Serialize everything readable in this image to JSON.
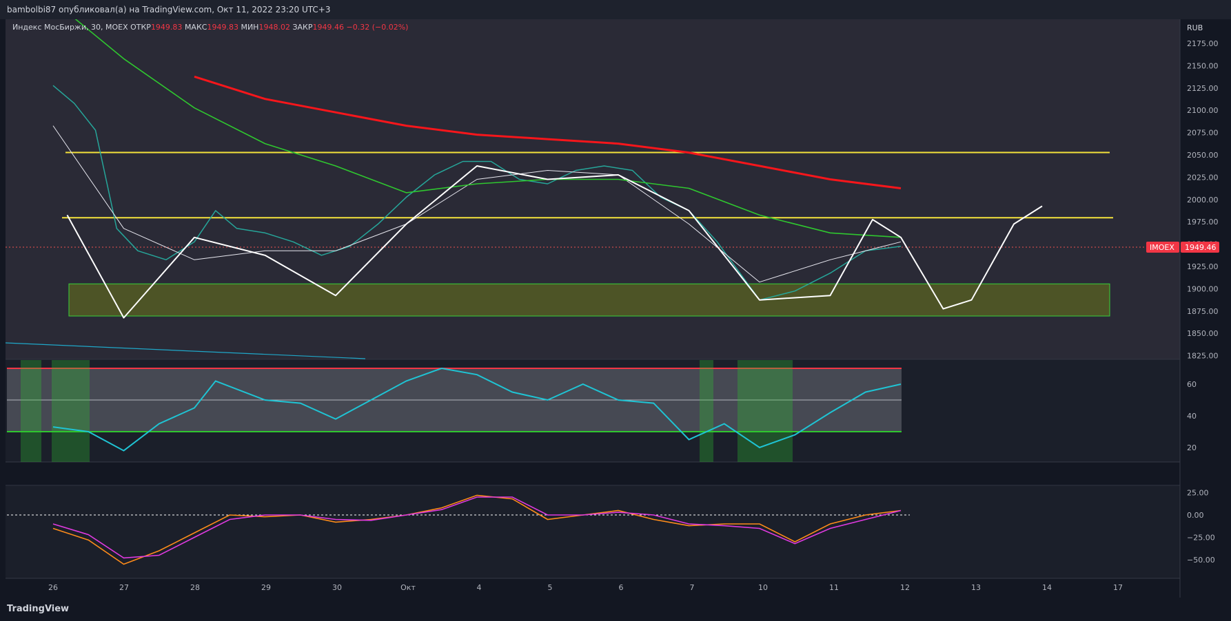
{
  "header": {
    "text": "bambolbi87 опубликовал(а) на TradingView.com, Окт 11, 2022 23:20 UTC+3"
  },
  "legend": {
    "symbol": "Индекс МосБиржи, 30, MOEX",
    "open_label": "ОТКР",
    "open": "1949.83",
    "high_label": "МАКС",
    "high": "1949.83",
    "low_label": "МИН",
    "low": "1948.02",
    "close_label": "ЗАКР",
    "close": "1949.46",
    "change": "−0.32 (−0.02%)"
  },
  "price_axis": {
    "currency": "RUB",
    "ticks": [
      "2175.00",
      "2150.00",
      "2125.00",
      "2100.00",
      "2075.00",
      "2050.00",
      "2025.00",
      "2000.00",
      "1975.00",
      "1950.00",
      "1925.00",
      "1900.00",
      "1875.00",
      "1850.00",
      "1825.00"
    ]
  },
  "price_tag": {
    "symbol": "IMOEX",
    "value": "1949.46"
  },
  "rsi_axis": {
    "ticks": [
      "60",
      "40",
      "20"
    ]
  },
  "macd_axis": {
    "ticks": [
      "25.00",
      "0.00",
      "−25.00",
      "−50.00"
    ]
  },
  "time_axis": {
    "labels": [
      "26",
      "27",
      "28",
      "29",
      "30",
      "Окт",
      "4",
      "5",
      "6",
      "7",
      "10",
      "11",
      "12",
      "13",
      "14",
      "17"
    ]
  },
  "footer": {
    "logo": "TradingView"
  },
  "colors": {
    "bg": "#131722",
    "up": "#26a69a",
    "down": "#ef5350",
    "ma_red": "#f7161b",
    "ma_green": "#2fc72f",
    "yellow": "#f5e33b",
    "rsi": "#1fc4d4",
    "zone": "#5d6620"
  },
  "chart_data": {
    "type": "line",
    "title": "",
    "ylim": [
      1825,
      2190
    ],
    "x_labels": [
      "26",
      "27",
      "28",
      "29",
      "30",
      "Окт",
      "4",
      "5",
      "6",
      "7",
      "10",
      "11",
      "12",
      "13",
      "14",
      "17"
    ],
    "series": [
      {
        "points": [
          [
            0,
            2130
          ],
          [
            0.3,
            2110
          ],
          [
            0.6,
            2080
          ],
          [
            0.9,
            1970
          ],
          [
            1.2,
            1945
          ],
          [
            1.6,
            1935
          ],
          [
            2,
            1955
          ],
          [
            2.3,
            1990
          ],
          [
            2.6,
            1970
          ],
          [
            3,
            1965
          ],
          [
            3.4,
            1955
          ],
          [
            3.8,
            1940
          ],
          [
            4.2,
            1950
          ],
          [
            4.6,
            1975
          ],
          [
            5,
            2005
          ],
          [
            5.4,
            2030
          ],
          [
            5.8,
            2045
          ],
          [
            6.2,
            2045
          ],
          [
            6.6,
            2025
          ],
          [
            7,
            2020
          ],
          [
            7.4,
            2035
          ],
          [
            7.8,
            2040
          ],
          [
            8.2,
            2035
          ],
          [
            8.6,
            2005
          ],
          [
            9,
            1990
          ],
          [
            9.4,
            1955
          ],
          [
            10,
            1890
          ],
          [
            10.5,
            1900
          ],
          [
            11,
            1920
          ],
          [
            11.5,
            1945
          ],
          [
            12,
            1950
          ]
        ]
      },
      {
        "points": [
          [
            0,
            2085
          ],
          [
            1,
            1970
          ],
          [
            2,
            1935
          ],
          [
            3,
            1945
          ],
          [
            4,
            1945
          ],
          [
            5,
            1975
          ],
          [
            6,
            2025
          ],
          [
            7,
            2035
          ],
          [
            8,
            2030
          ],
          [
            9,
            1975
          ],
          [
            10,
            1910
          ],
          [
            11,
            1935
          ],
          [
            12,
            1955
          ]
        ]
      },
      {
        "points": [
          [
            0,
            2225
          ],
          [
            1,
            2160
          ],
          [
            2,
            2105
          ],
          [
            3,
            2065
          ],
          [
            4,
            2040
          ],
          [
            5,
            2010
          ],
          [
            6,
            2020
          ],
          [
            7,
            2025
          ],
          [
            8,
            2025
          ],
          [
            9,
            2015
          ],
          [
            10,
            1985
          ],
          [
            11,
            1965
          ],
          [
            12,
            1960
          ]
        ]
      },
      {
        "points": [
          [
            2,
            2140
          ],
          [
            3,
            2115
          ],
          [
            4,
            2100
          ],
          [
            5,
            2085
          ],
          [
            6,
            2075
          ],
          [
            7,
            2070
          ],
          [
            8,
            2065
          ],
          [
            9,
            2055
          ],
          [
            10,
            2040
          ],
          [
            11,
            2025
          ],
          [
            12,
            2015
          ]
        ]
      },
      {
        "points": [
          [
            0.2,
            1985
          ],
          [
            1,
            1870
          ],
          [
            2,
            1960
          ],
          [
            3,
            1940
          ],
          [
            4,
            1895
          ],
          [
            5,
            1975
          ],
          [
            6,
            2040
          ],
          [
            7,
            2025
          ],
          [
            8,
            2030
          ],
          [
            9,
            1990
          ],
          [
            10,
            1890
          ],
          [
            11,
            1895
          ],
          [
            11.6,
            1980
          ],
          [
            12,
            1960
          ],
          [
            12.6,
            1880
          ],
          [
            13,
            1890
          ],
          [
            13.6,
            1975
          ],
          [
            14,
            1995
          ]
        ]
      }
    ],
    "levels": [
      2055,
      1982
    ],
    "zone": [
      1872,
      1908
    ],
    "rsi": {
      "ylim": [
        0,
        100
      ],
      "upper": 70,
      "mid": 50,
      "lower": 30,
      "values": [
        [
          0,
          33
        ],
        [
          0.5,
          30
        ],
        [
          1,
          18
        ],
        [
          1.5,
          35
        ],
        [
          2,
          45
        ],
        [
          2.3,
          62
        ],
        [
          3,
          50
        ],
        [
          3.5,
          48
        ],
        [
          4,
          38
        ],
        [
          4.5,
          50
        ],
        [
          5,
          62
        ],
        [
          5.5,
          70
        ],
        [
          6,
          66
        ],
        [
          6.5,
          55
        ],
        [
          7,
          50
        ],
        [
          7.5,
          60
        ],
        [
          8,
          50
        ],
        [
          8.5,
          48
        ],
        [
          9,
          25
        ],
        [
          9.5,
          35
        ],
        [
          10,
          20
        ],
        [
          10.5,
          28
        ],
        [
          11,
          42
        ],
        [
          11.5,
          55
        ],
        [
          12,
          60
        ]
      ]
    },
    "macd": {
      "ylim": [
        -62,
        32
      ],
      "macd_line": [
        [
          0,
          -15
        ],
        [
          0.5,
          -28
        ],
        [
          1,
          -55
        ],
        [
          1.5,
          -40
        ],
        [
          2,
          -20
        ],
        [
          2.5,
          0
        ],
        [
          3,
          -2
        ],
        [
          3.5,
          0
        ],
        [
          4,
          -8
        ],
        [
          4.5,
          -5
        ],
        [
          5,
          0
        ],
        [
          5.5,
          8
        ],
        [
          6,
          22
        ],
        [
          6.5,
          18
        ],
        [
          7,
          -5
        ],
        [
          7.5,
          0
        ],
        [
          8,
          5
        ],
        [
          8.5,
          -5
        ],
        [
          9,
          -12
        ],
        [
          9.5,
          -10
        ],
        [
          10,
          -10
        ],
        [
          10.5,
          -30
        ],
        [
          11,
          -10
        ],
        [
          11.5,
          0
        ],
        [
          12,
          5
        ]
      ],
      "signal_line": [
        [
          0,
          -10
        ],
        [
          0.5,
          -22
        ],
        [
          1,
          -48
        ],
        [
          1.5,
          -45
        ],
        [
          2,
          -25
        ],
        [
          2.5,
          -5
        ],
        [
          3,
          0
        ],
        [
          3.5,
          0
        ],
        [
          4,
          -5
        ],
        [
          4.5,
          -6
        ],
        [
          5,
          0
        ],
        [
          5.5,
          6
        ],
        [
          6,
          20
        ],
        [
          6.5,
          20
        ],
        [
          7,
          0
        ],
        [
          7.5,
          0
        ],
        [
          8,
          3
        ],
        [
          8.5,
          0
        ],
        [
          9,
          -10
        ],
        [
          9.5,
          -12
        ],
        [
          10,
          -15
        ],
        [
          10.5,
          -32
        ],
        [
          11,
          -15
        ],
        [
          11.5,
          -5
        ],
        [
          12,
          5
        ]
      ]
    }
  }
}
